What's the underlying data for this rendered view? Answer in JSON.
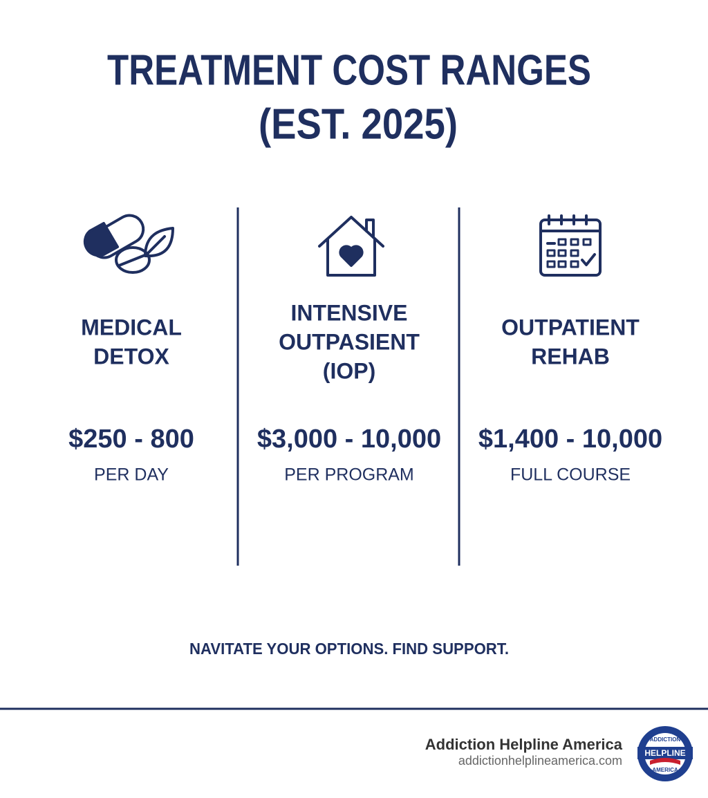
{
  "header": {
    "title_lines": [
      "TREATMENT COST RANGES",
      "(EST. 2025)"
    ]
  },
  "columns": [
    {
      "name_lines": [
        "MEDICAL",
        "DETOX"
      ],
      "cost": "$250 - 800",
      "unit": "PER DAY"
    },
    {
      "name_lines": [
        "INTENSIVE",
        "OUTPASIENT",
        "(IOP)"
      ],
      "cost": "$3,000 - 10,000",
      "unit": "PER PROGRAM"
    },
    {
      "name_lines": [
        "OUTPATIENT",
        "REHAB"
      ],
      "cost": "$1,400 - 10,000",
      "unit": "FULL COURSE"
    }
  ],
  "tagline": "NAVITATE YOUR OPTIONS. FIND SUPPORT.",
  "footer": {
    "brand": "Addiction Helpline America",
    "url": "addictionhelplineamerica.com",
    "badge": [
      "ADDICTION",
      "HELPLINE",
      "AMERICA"
    ]
  }
}
